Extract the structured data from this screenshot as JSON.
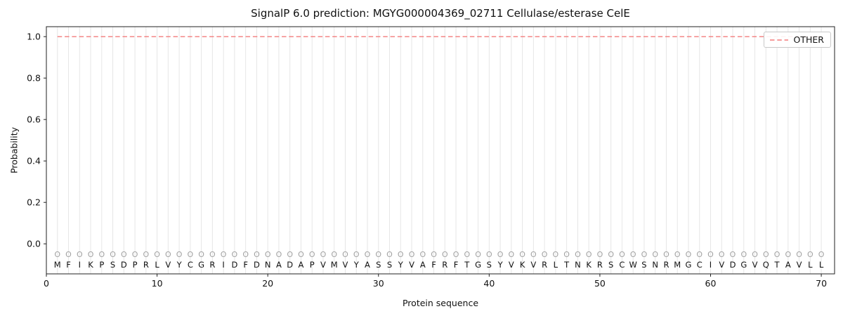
{
  "chart_data": {
    "type": "line",
    "title": "SignalP 6.0 prediction: MGYG000004369_02711 Cellulase/esterase CelE",
    "xlabel": "Protein sequence",
    "ylabel": "Probability",
    "xlim": [
      0,
      71.2
    ],
    "ylim": [
      -0.145,
      1.048
    ],
    "x_ticks": [
      0,
      10,
      20,
      30,
      40,
      50,
      60,
      70
    ],
    "y_ticks": [
      "0.0",
      "0.2",
      "0.4",
      "0.6",
      "0.8",
      "1.0"
    ],
    "grid": {
      "vertical_per_residue": true,
      "color": "#e6e6e6"
    },
    "sequence": "MFIKPSDPRLVYCGRIDFDNADAPVMVYASSYVAFRFTGSYVKVRLTNKRSCWSNRMGCIVDGVQTAVLL",
    "prediction_labels": "OOOOOOOOOOOOOOOOOOOOOOOOOOOOOOOOOOOOOOOOOOOOOOOOOOOOOOOOOOOOOOOOOOOOOO",
    "marker_row_y": -0.05,
    "series": [
      {
        "name": "OTHER",
        "color": "#f37b7b",
        "linestyle": "dashed",
        "y_constant": 1.0,
        "x_start": 1,
        "x_end": 70
      }
    ],
    "legend": {
      "label": "OTHER",
      "position": "upper right"
    }
  }
}
